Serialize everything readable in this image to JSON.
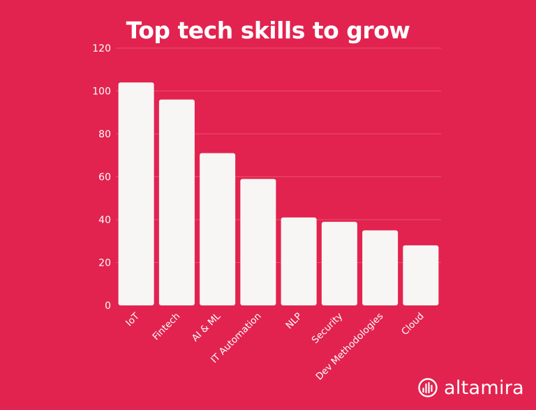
{
  "title": "Top tech skills to grow",
  "brand": {
    "name": "altamira",
    "icon": "altamira-logo-icon"
  },
  "colors": {
    "background": "#E2234F",
    "bar": "#F8F6F4",
    "text": "#FFFFFF",
    "grid": "#E8506F"
  },
  "chart_data": {
    "type": "bar",
    "title": "Top tech skills to grow",
    "xlabel": "",
    "ylabel": "",
    "categories": [
      "IoT",
      "Fintech",
      "AI & ML",
      "IT Automation",
      "NLP",
      "Security",
      "Dev Methodologies",
      "Cloud"
    ],
    "values": [
      104,
      96,
      71,
      59,
      41,
      39,
      35,
      28
    ],
    "ylim": [
      0,
      120
    ],
    "yticks": [
      0,
      20,
      40,
      60,
      80,
      100,
      120
    ],
    "grid": true,
    "legend": "none"
  }
}
